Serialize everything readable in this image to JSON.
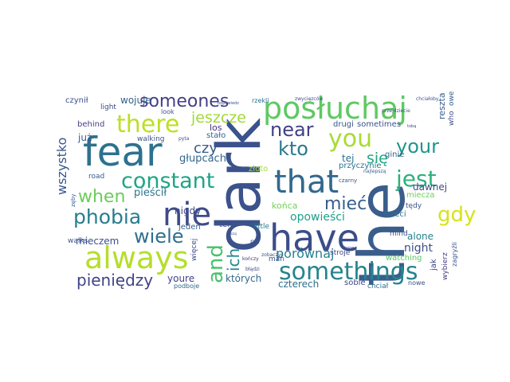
{
  "cloud": {
    "words": [
      {
        "text": "the",
        "color": "#3a5e8c",
        "vertical": true
      },
      {
        "text": "dark",
        "color": "#3b528b",
        "vertical": true
      },
      {
        "text": "fear",
        "color": "#2c728e",
        "vertical": false
      },
      {
        "text": "posłuchaj",
        "color": "#5ec962",
        "vertical": false
      },
      {
        "text": "have",
        "color": "#3b4d8a",
        "vertical": false
      },
      {
        "text": "always",
        "color": "#b5de2b",
        "vertical": false
      },
      {
        "text": "that",
        "color": "#31688e",
        "vertical": false
      },
      {
        "text": "nie",
        "color": "#3e4a89",
        "vertical": false
      },
      {
        "text": "you",
        "color": "#a8db34",
        "vertical": false
      },
      {
        "text": "somethings",
        "color": "#25848e",
        "vertical": false
      },
      {
        "text": "constant",
        "color": "#20a486",
        "vertical": false
      },
      {
        "text": "there",
        "color": "#bddf26",
        "vertical": false
      },
      {
        "text": "someones",
        "color": "#433e85",
        "vertical": false
      },
      {
        "text": "phobia",
        "color": "#287d8e",
        "vertical": false
      },
      {
        "text": "when",
        "color": "#6ccd5a",
        "vertical": false
      },
      {
        "text": "gdy",
        "color": "#d8e219",
        "vertical": false
      },
      {
        "text": "jest",
        "color": "#2db27d",
        "vertical": false
      },
      {
        "text": "your",
        "color": "#1f968b",
        "vertical": false
      },
      {
        "text": "kto",
        "color": "#2a788e",
        "vertical": false
      },
      {
        "text": "near",
        "color": "#424086",
        "vertical": false
      },
      {
        "text": "and",
        "color": "#4ac16d",
        "vertical": true
      },
      {
        "text": "wiele",
        "color": "#2e6f8e",
        "vertical": false
      },
      {
        "text": "mieć",
        "color": "#355f8d",
        "vertical": false
      },
      {
        "text": "pieniędzy",
        "color": "#414487",
        "vertical": false
      },
      {
        "text": "jeszcze",
        "color": "#a0da39",
        "vertical": false
      },
      {
        "text": "się",
        "color": "#22a884",
        "vertical": false
      },
      {
        "text": "wszystko",
        "color": "#39568c",
        "vertical": true
      },
      {
        "text": "ich",
        "color": "#23898e",
        "vertical": true
      },
      {
        "text": "czy",
        "color": "#355e8d",
        "vertical": false
      },
      {
        "text": "porównaj",
        "color": "#27808e",
        "vertical": false
      },
      {
        "text": "opowieści",
        "color": "#1fa088",
        "vertical": false
      },
      {
        "text": "dawnej",
        "color": "#3f4788",
        "vertical": false
      },
      {
        "text": "night",
        "color": "#3b518b",
        "vertical": false
      },
      {
        "text": "alone",
        "color": "#26828e",
        "vertical": false
      },
      {
        "text": "pieścił",
        "color": "#2a778e",
        "vertical": false
      },
      {
        "text": "głupcach",
        "color": "#31678e",
        "vertical": false
      },
      {
        "text": "czterech",
        "color": "#2e6e8e",
        "vertical": false
      },
      {
        "text": "których",
        "color": "#306a8e",
        "vertical": false
      },
      {
        "text": "youre",
        "color": "#414287",
        "vertical": false
      },
      {
        "text": "mieczem",
        "color": "#3d4e8a",
        "vertical": false
      },
      {
        "text": "nigdy",
        "color": "#3e4c8a",
        "vertical": false
      },
      {
        "text": "końca",
        "color": "#75d054",
        "vertical": false
      },
      {
        "text": "tej",
        "color": "#2d708e",
        "vertical": false
      },
      {
        "text": "już",
        "color": "#375b8d",
        "vertical": false
      },
      {
        "text": "los",
        "color": "#46327e",
        "vertical": false
      },
      {
        "text": "stało",
        "color": "#32658e",
        "vertical": false
      },
      {
        "text": "wojuje",
        "color": "#355f8d",
        "vertical": false
      },
      {
        "text": "reszta",
        "color": "#365c8d",
        "vertical": true
      },
      {
        "text": "who",
        "color": "#3d4d8a",
        "vertical": true
      },
      {
        "text": "owe",
        "color": "#365d8d",
        "vertical": true
      },
      {
        "text": "przyczynie",
        "color": "#2a768e",
        "vertical": false
      },
      {
        "text": "drugi",
        "color": "#39558c",
        "vertical": false
      },
      {
        "text": "sometimes",
        "color": "#3a538b",
        "vertical": false
      },
      {
        "text": "trzeci",
        "color": "#2c718e",
        "vertical": false
      },
      {
        "text": "mind",
        "color": "#3c4f8a",
        "vertical": false
      },
      {
        "text": "ginie",
        "color": "#2f6b8e",
        "vertical": false
      },
      {
        "text": "miecza",
        "color": "#6ece58",
        "vertical": false
      },
      {
        "text": "tędy",
        "color": "#3b528b",
        "vertical": false
      },
      {
        "text": "watching",
        "color": "#5ac864",
        "vertical": false
      },
      {
        "text": "jak",
        "color": "#404688",
        "vertical": true
      },
      {
        "text": "wybierz",
        "color": "#433d84",
        "vertical": true
      },
      {
        "text": "zagryźli",
        "color": "#3a548c",
        "vertical": true
      },
      {
        "text": "sobie",
        "color": "#3f4889",
        "vertical": false
      },
      {
        "text": "chciał",
        "color": "#2e6f8e",
        "vertical": false
      },
      {
        "text": "nowe",
        "color": "#3b518b",
        "vertical": false
      },
      {
        "text": "stroje",
        "color": "#3e4989",
        "vertical": false
      },
      {
        "text": "man",
        "color": "#3b528b",
        "vertical": false
      },
      {
        "text": "nic",
        "color": "#3a538b",
        "vertical": false
      },
      {
        "text": "little",
        "color": "#2a788e",
        "vertical": false
      },
      {
        "text": "ten",
        "color": "#3d4d8a",
        "vertical": false
      },
      {
        "text": "jeden",
        "color": "#365d8d",
        "vertical": false
      },
      {
        "text": "więcej",
        "color": "#3f4788",
        "vertical": true
      },
      {
        "text": "podboje",
        "color": "#306a8e",
        "vertical": false
      },
      {
        "text": "walks",
        "color": "#39568c",
        "vertical": false
      },
      {
        "text": "road",
        "color": "#365c8d",
        "vertical": false
      },
      {
        "text": "behind",
        "color": "#433e85",
        "vertical": false
      },
      {
        "text": "walking",
        "color": "#3a548c",
        "vertical": false
      },
      {
        "text": "czynił",
        "color": "#3b528b",
        "vertical": false
      },
      {
        "text": "light",
        "color": "#3e4a89",
        "vertical": false
      },
      {
        "text": "look",
        "color": "#3b528b",
        "vertical": false
      },
      {
        "text": "rzekli",
        "color": "#2e6e8e",
        "vertical": false
      },
      {
        "text": "złoto",
        "color": "#a5db36",
        "vertical": false
      },
      {
        "text": "zęby",
        "color": "#355f8d",
        "vertical": true
      },
      {
        "text": "pyta",
        "color": "#3d4e8a",
        "vertical": false
      },
      {
        "text": "czarny",
        "color": "#3a538b",
        "vertical": false
      },
      {
        "text": "najlepszą",
        "color": "#355f8d",
        "vertical": false
      },
      {
        "text": "zwycięzców",
        "color": "#3e4989",
        "vertical": false
      },
      {
        "text": "chciałoby",
        "color": "#3a548c",
        "vertical": false
      },
      {
        "text": "kończy",
        "color": "#46337e",
        "vertical": false
      },
      {
        "text": "błądzi",
        "color": "#3e4a89",
        "vertical": false
      },
      {
        "text": "zobaczyć",
        "color": "#3b528b",
        "vertical": false
      },
      {
        "text": "drogę",
        "color": "#3b518b",
        "vertical": false
      },
      {
        "text": "odpowiedz",
        "color": "#3d4e8a",
        "vertical": false
      },
      {
        "text": "przejdziecie",
        "color": "#3b528b",
        "vertical": false
      },
      {
        "text": "tobą",
        "color": "#3f4788",
        "vertical": false
      },
      {
        "text": "ruszaj",
        "color": "#3b518b",
        "vertical": false
      }
    ]
  }
}
